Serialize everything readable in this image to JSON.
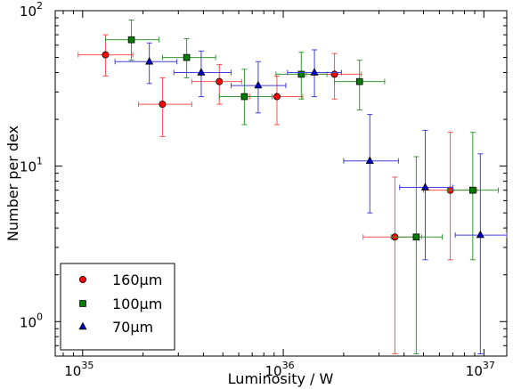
{
  "chart_data": {
    "type": "scatter",
    "title": "",
    "xlabel": "Luminosity / W",
    "ylabel": "Number per dex",
    "xscale": "log",
    "yscale": "log",
    "xlim": [
      7.3e+34,
      1.3e+37
    ],
    "ylim": [
      0.6,
      100
    ],
    "xticks": [
      {
        "value": 1e+35,
        "base": "10",
        "exp": "35"
      },
      {
        "value": 1e+36,
        "base": "10",
        "exp": "36"
      },
      {
        "value": 1e+37,
        "base": "10",
        "exp": "37"
      }
    ],
    "yticks": [
      {
        "value": 1,
        "base": "10",
        "exp": "0"
      },
      {
        "value": 10,
        "base": "10",
        "exp": "1"
      },
      {
        "value": 100,
        "base": "10",
        "exp": "2"
      }
    ],
    "grid": false,
    "legend_position": "bottom-left",
    "series": [
      {
        "name": "160µm",
        "marker": "circle",
        "color": "#ff0000",
        "edge_color": "#000000",
        "error_color": "#ff5050",
        "points": [
          {
            "x": 1.3e+35,
            "y": 52,
            "xerr": [
              9.5e+34,
              1.78e+35
            ],
            "yerr": [
              38,
              70
            ]
          },
          {
            "x": 2.5e+35,
            "y": 25,
            "xerr": [
              1.9e+35,
              3.5e+35
            ],
            "yerr": [
              15.5,
              37
            ]
          },
          {
            "x": 4.8e+35,
            "y": 35,
            "xerr": [
              3.5e+35,
              6.2e+35
            ],
            "yerr": [
              25,
              45
            ]
          },
          {
            "x": 9.3e+35,
            "y": 28,
            "xerr": [
              6.8e+35,
              1.25e+36
            ],
            "yerr": [
              18.5,
              38
            ]
          },
          {
            "x": 1.8e+36,
            "y": 39,
            "xerr": [
              1.3e+36,
              2.45e+36
            ],
            "yerr": [
              27,
              53
            ]
          },
          {
            "x": 3.6e+36,
            "y": 3.5,
            "xerr": [
              2.5e+36,
              4.9e+36
            ],
            "yerr": [
              0.62,
              8.5
            ]
          },
          {
            "x": 6.8e+36,
            "y": 7.0,
            "xerr": [
              5e+36,
              9.2e+36
            ],
            "yerr": [
              2.5,
              16.5
            ]
          }
        ]
      },
      {
        "name": "100µm",
        "marker": "square",
        "color": "#008000",
        "edge_color": "#000000",
        "error_color": "#339933",
        "points": [
          {
            "x": 1.75e+35,
            "y": 65,
            "xerr": [
              1.3e+35,
              2.4e+35
            ],
            "yerr": [
              48,
              87
            ]
          },
          {
            "x": 3.3e+35,
            "y": 50,
            "xerr": [
              2.5e+35,
              4.6e+35
            ],
            "yerr": [
              37,
              66
            ]
          },
          {
            "x": 6.4e+35,
            "y": 28,
            "xerr": [
              4.8e+35,
              8.8e+35
            ],
            "yerr": [
              18.5,
              42
            ]
          },
          {
            "x": 1.23e+36,
            "y": 39,
            "xerr": [
              9.2e+35,
              1.65e+36
            ],
            "yerr": [
              27,
              54
            ]
          },
          {
            "x": 2.4e+36,
            "y": 35,
            "xerr": [
              1.8e+36,
              3.2e+36
            ],
            "yerr": [
              23,
              48
            ]
          },
          {
            "x": 4.6e+36,
            "y": 3.5,
            "xerr": [
              3.45e+36,
              6.2e+36
            ],
            "yerr": [
              0.62,
              11.5
            ]
          },
          {
            "x": 8.8e+36,
            "y": 7.0,
            "xerr": [
              6.6e+36,
              1.18e+37
            ],
            "yerr": [
              2.5,
              16.5
            ]
          }
        ]
      },
      {
        "name": "70µm",
        "marker": "triangle",
        "color": "#0000cc",
        "edge_color": "#000000",
        "error_color": "#4040dd",
        "points": [
          {
            "x": 2.15e+35,
            "y": 47,
            "xerr": [
              1.45e+35,
              2.95e+35
            ],
            "yerr": [
              34,
              62
            ]
          },
          {
            "x": 3.9e+35,
            "y": 40,
            "xerr": [
              2.85e+35,
              5.5e+35
            ],
            "yerr": [
              28,
              55
            ]
          },
          {
            "x": 7.5e+35,
            "y": 33,
            "xerr": [
              5.5e+35,
              1.03e+36
            ],
            "yerr": [
              22,
              47
            ]
          },
          {
            "x": 1.43e+36,
            "y": 40,
            "xerr": [
              1.05e+36,
              1.95e+36
            ],
            "yerr": [
              28,
              56
            ]
          },
          {
            "x": 2.7e+36,
            "y": 10.8,
            "xerr": [
              2e+36,
              3.75e+36
            ],
            "yerr": [
              5,
              21.5
            ]
          },
          {
            "x": 5.1e+36,
            "y": 7.3,
            "xerr": [
              3.8e+36,
              7e+36
            ],
            "yerr": [
              2.5,
              17
            ]
          },
          {
            "x": 9.6e+36,
            "y": 3.6,
            "xerr": [
              7.2e+36,
              1.3e+37
            ],
            "yerr": [
              0.62,
              12
            ]
          }
        ]
      }
    ]
  }
}
